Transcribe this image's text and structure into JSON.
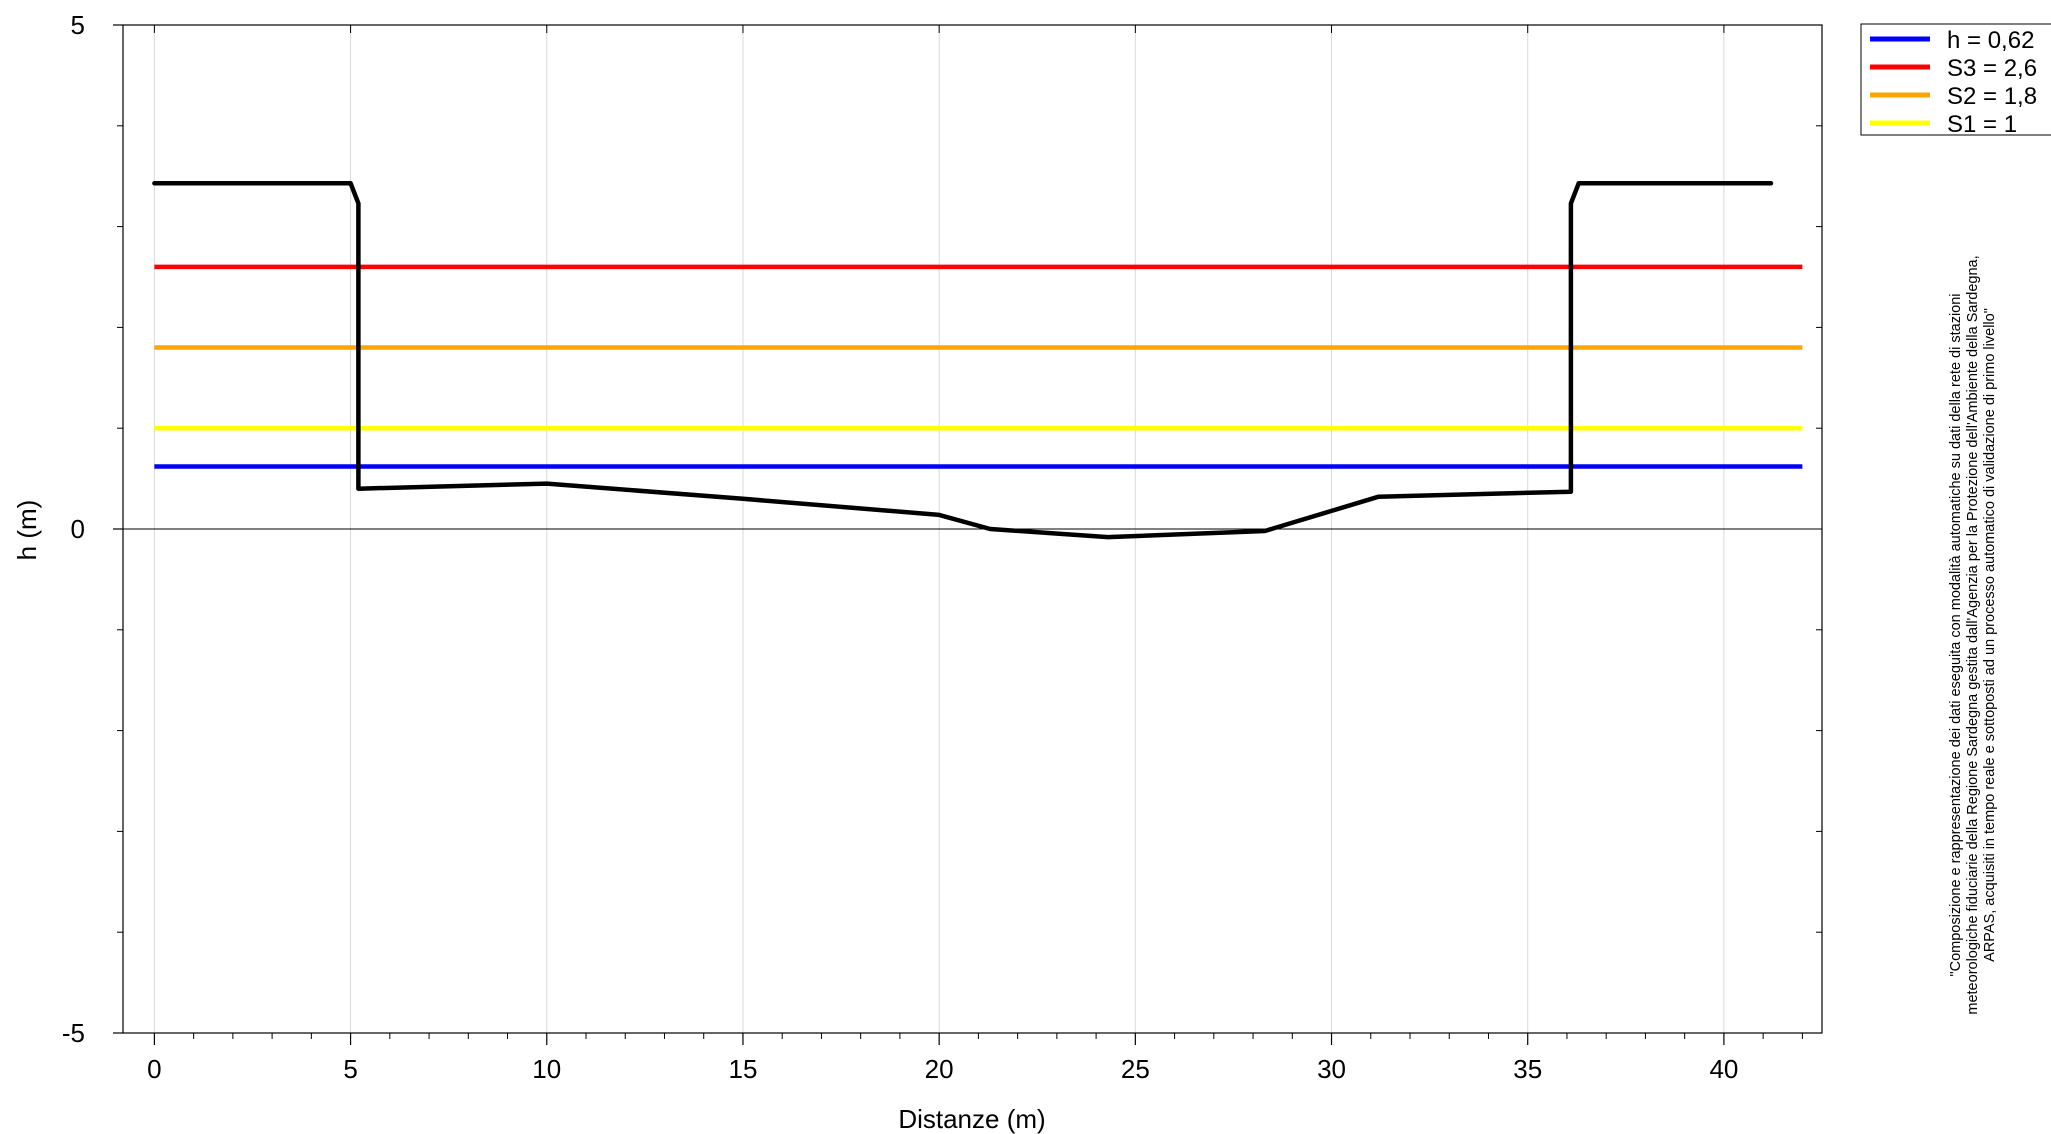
{
  "chart_data": {
    "type": "line",
    "title": "",
    "xlabel": "Distanze (m)",
    "ylabel": "h (m)",
    "xlim": [
      -0.8,
      42.5
    ],
    "ylim": [
      -5,
      5
    ],
    "x_ticks": [
      0,
      5,
      10,
      15,
      20,
      25,
      30,
      35,
      40
    ],
    "y_ticks": [
      -5,
      0,
      5
    ],
    "grid": "vertical",
    "legend_position": "outside-top-right",
    "profile": {
      "color": "#000000",
      "x": [
        0,
        5.0,
        5.2,
        5.2,
        10.0,
        15.0,
        20.0,
        21.3,
        24.3,
        28.3,
        31.2,
        36.1,
        36.1,
        36.3,
        41.2
      ],
      "y": [
        3.43,
        3.43,
        3.23,
        0.4,
        0.45,
        0.3,
        0.14,
        0.0,
        -0.08,
        -0.02,
        0.32,
        0.37,
        3.23,
        3.43,
        3.43
      ]
    },
    "levels": [
      {
        "label": "h = 0,62",
        "value": 0.62,
        "color": "#0000ff"
      },
      {
        "label": "S3 = 2,6",
        "value": 2.6,
        "color": "#ff0000"
      },
      {
        "label": "S2 = 1,8",
        "value": 1.8,
        "color": "#ffa500"
      },
      {
        "label": "S1 = 1",
        "value": 1.0,
        "color": "#ffff00"
      }
    ],
    "level_x_range": [
      0,
      42
    ],
    "note_lines": [
      "\"Composizione e rappresentazione dei dati eseguita con modalità automatiche su dati della rete di stazioni",
      "meteorologiche fiduciarie della Regione Sardegna gestita dall'Agenzia per la Protezione dell'Ambiente della Sardegna,",
      "ARPAS, acquisiti in tempo reale e sottoposti ad un processo automatico di validazione di primo livello\""
    ]
  }
}
